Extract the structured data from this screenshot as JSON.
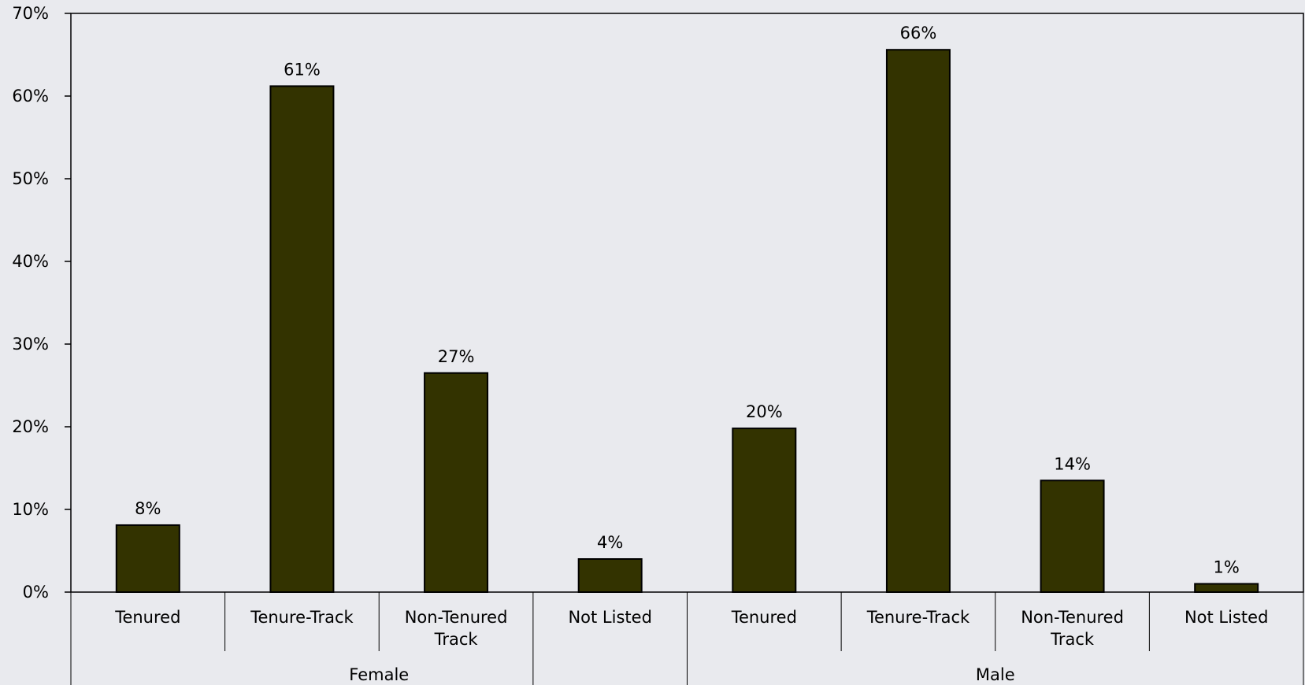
{
  "chart_data": {
    "type": "bar",
    "categories": [
      "Tenured",
      "Tenure-Track",
      "Non-Tenured Track",
      "Not Listed",
      "Tenured",
      "Tenure-Track",
      "Non-Tenured Track",
      "Not Listed"
    ],
    "category_lines": [
      [
        "Tenured"
      ],
      [
        "Tenure-Track"
      ],
      [
        "Non-Tenured",
        "Track"
      ],
      [
        "Not Listed"
      ],
      [
        "Tenured"
      ],
      [
        "Tenure-Track"
      ],
      [
        "Non-Tenured",
        "Track"
      ],
      [
        "Not Listed"
      ]
    ],
    "groups": [
      {
        "label": "Female",
        "start": 0,
        "end": 3
      },
      {
        "label": "Male",
        "start": 4,
        "end": 7
      }
    ],
    "values": [
      8.1,
      61.2,
      26.5,
      4.0,
      19.8,
      65.6,
      13.5,
      1.0
    ],
    "data_labels": [
      "8%",
      "61%",
      "27%",
      "4%",
      "20%",
      "66%",
      "14%",
      "1%"
    ],
    "ylim": [
      0,
      70
    ],
    "yticks": [
      "0%",
      "10%",
      "20%",
      "30%",
      "40%",
      "50%",
      "60%",
      "70%"
    ],
    "ytick_values": [
      0,
      10,
      20,
      30,
      40,
      50,
      60,
      70
    ],
    "title": "",
    "xlabel": "",
    "ylabel": "",
    "grid": false,
    "bar_color": "#333300",
    "background_color": "#e9eaee"
  }
}
